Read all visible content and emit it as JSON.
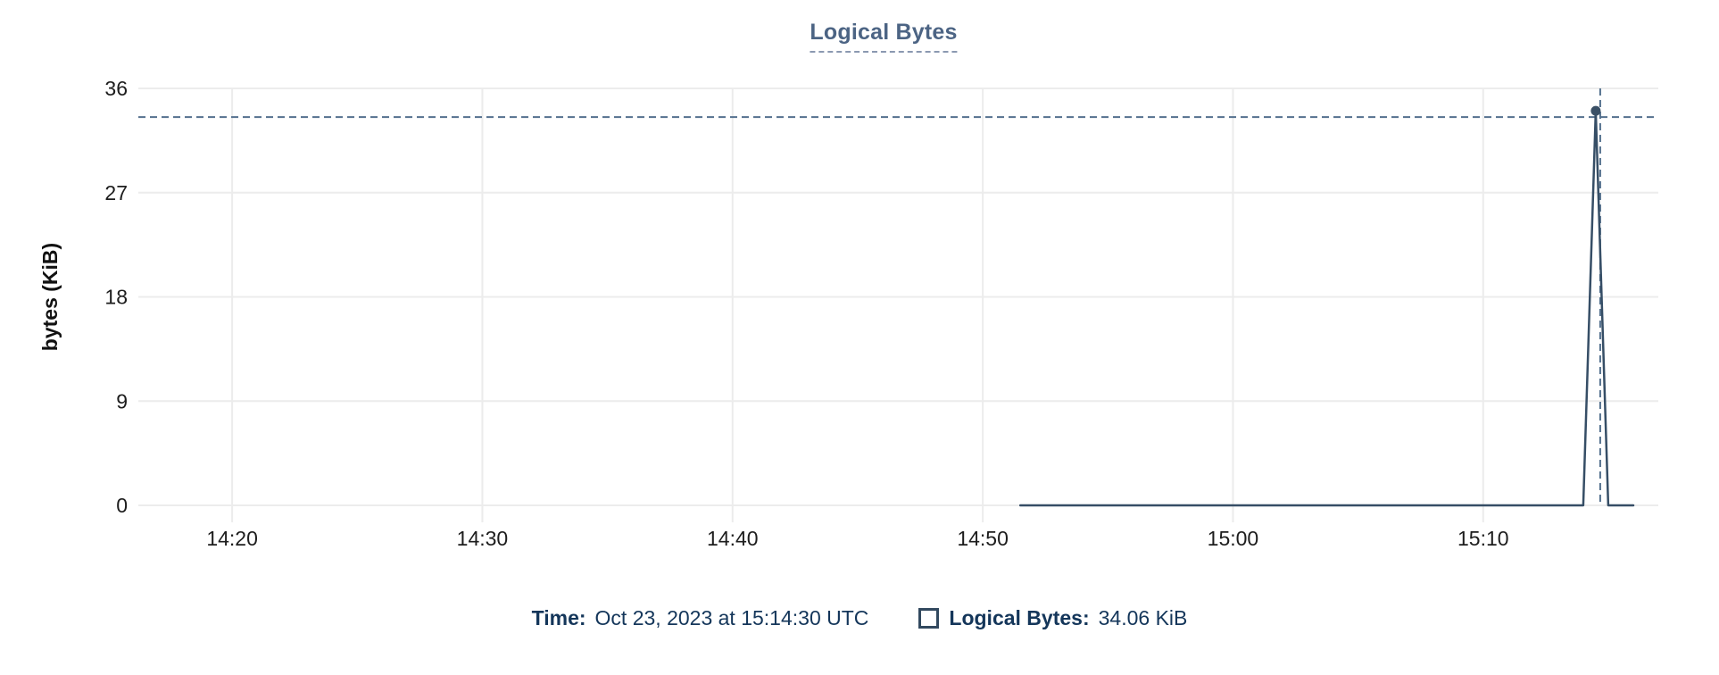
{
  "title": {
    "text": "Logical Bytes"
  },
  "y_axis": {
    "label": "bytes (KiB)"
  },
  "tooltip": {
    "time_label": "Time:",
    "time_value": "Oct 23, 2023 at 15:14:30 UTC",
    "series_label": "Logical Bytes:",
    "series_value": "34.06 KiB"
  },
  "colors": {
    "title": "#4c6484",
    "title_underline": "#8b99b1",
    "grid": "#ececec",
    "axis_text": "#1d1d1d",
    "line": "#364e66",
    "marker": "#3a5066",
    "crosshair": "#54718e",
    "footer_text": "#14365a",
    "swatch_border": "#32495f"
  },
  "chart_data": {
    "type": "line",
    "title": "Logical Bytes",
    "ylabel": "bytes (KiB)",
    "ylim": [
      0,
      36
    ],
    "y_ticks": [
      36,
      27,
      18,
      9,
      0
    ],
    "x_ticks": [
      "14:20",
      "14:30",
      "14:40",
      "14:50",
      "15:00",
      "15:10"
    ],
    "x_domain": [
      "14:16:15",
      "15:17:00"
    ],
    "grid": true,
    "legend_position": "bottom",
    "series": [
      {
        "name": "Logical Bytes",
        "points": [
          [
            "14:51:30",
            0
          ],
          [
            "15:14:00",
            0
          ],
          [
            "15:14:30",
            34.06
          ],
          [
            "15:15:00",
            0
          ],
          [
            "15:16:00",
            0
          ]
        ]
      }
    ],
    "selected_point": {
      "x": "15:14:30",
      "y": 34.06,
      "value_label": "34.06 KiB"
    }
  }
}
